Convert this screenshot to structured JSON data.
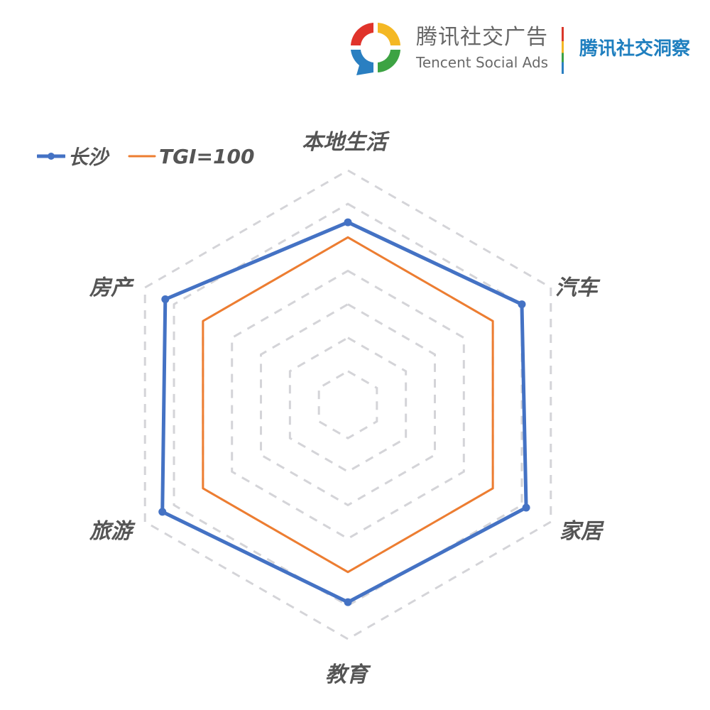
{
  "header": {
    "brand_cn": "腾讯社交广告",
    "brand_en": "Tencent Social Ads",
    "insight_title": "腾讯社交洞察",
    "logo_colors": [
      "#e0332b",
      "#f4b824",
      "#2a7fc1",
      "#3da343"
    ]
  },
  "legend": {
    "items": [
      {
        "label": "长沙",
        "color": "#4472c4",
        "marker": "dot-line"
      },
      {
        "label": "TGI=100",
        "color": "#ed7d31",
        "marker": "line"
      }
    ]
  },
  "chart_data": {
    "type": "radar",
    "title": "",
    "categories": [
      "本地生活",
      "汽车",
      "家居",
      "教育",
      "旅游",
      "房产"
    ],
    "series": [
      {
        "name": "长沙",
        "color": "#4472c4",
        "values": [
          109,
          120,
          123,
          118,
          128,
          126
        ]
      },
      {
        "name": "TGI=100",
        "color": "#ed7d31",
        "values": [
          100,
          100,
          100,
          100,
          100,
          100
        ]
      }
    ],
    "rlim": [
      0,
      140
    ],
    "grid_step": 20,
    "grid": "dashed hexagon",
    "legend_position": "top-left"
  }
}
